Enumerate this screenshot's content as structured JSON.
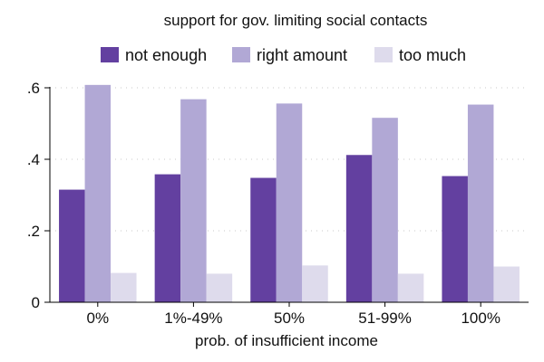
{
  "chart_data": {
    "type": "bar",
    "title": "support for gov. limiting social contacts",
    "xlabel": "prob. of insufficient income",
    "ylabel": "",
    "categories": [
      "0%",
      "1%-49%",
      "50%",
      "51-99%",
      "100%"
    ],
    "series": [
      {
        "name": "not enough",
        "color": "#6340a0",
        "values": [
          0.315,
          0.358,
          0.348,
          0.412,
          0.353
        ]
      },
      {
        "name": "right amount",
        "color": "#b1a8d5",
        "values": [
          0.608,
          0.568,
          0.556,
          0.516,
          0.553
        ]
      },
      {
        "name": "too much",
        "color": "#dedbec",
        "values": [
          0.082,
          0.08,
          0.103,
          0.08,
          0.1
        ]
      }
    ],
    "ylim": [
      0,
      0.6
    ],
    "yticks": [
      {
        "value": 0,
        "label": "0"
      },
      {
        "value": 0.2,
        "label": ".2"
      },
      {
        "value": 0.4,
        "label": ".4"
      },
      {
        "value": 0.6,
        "label": ".6"
      }
    ],
    "grid": true,
    "legend_position": "top"
  }
}
